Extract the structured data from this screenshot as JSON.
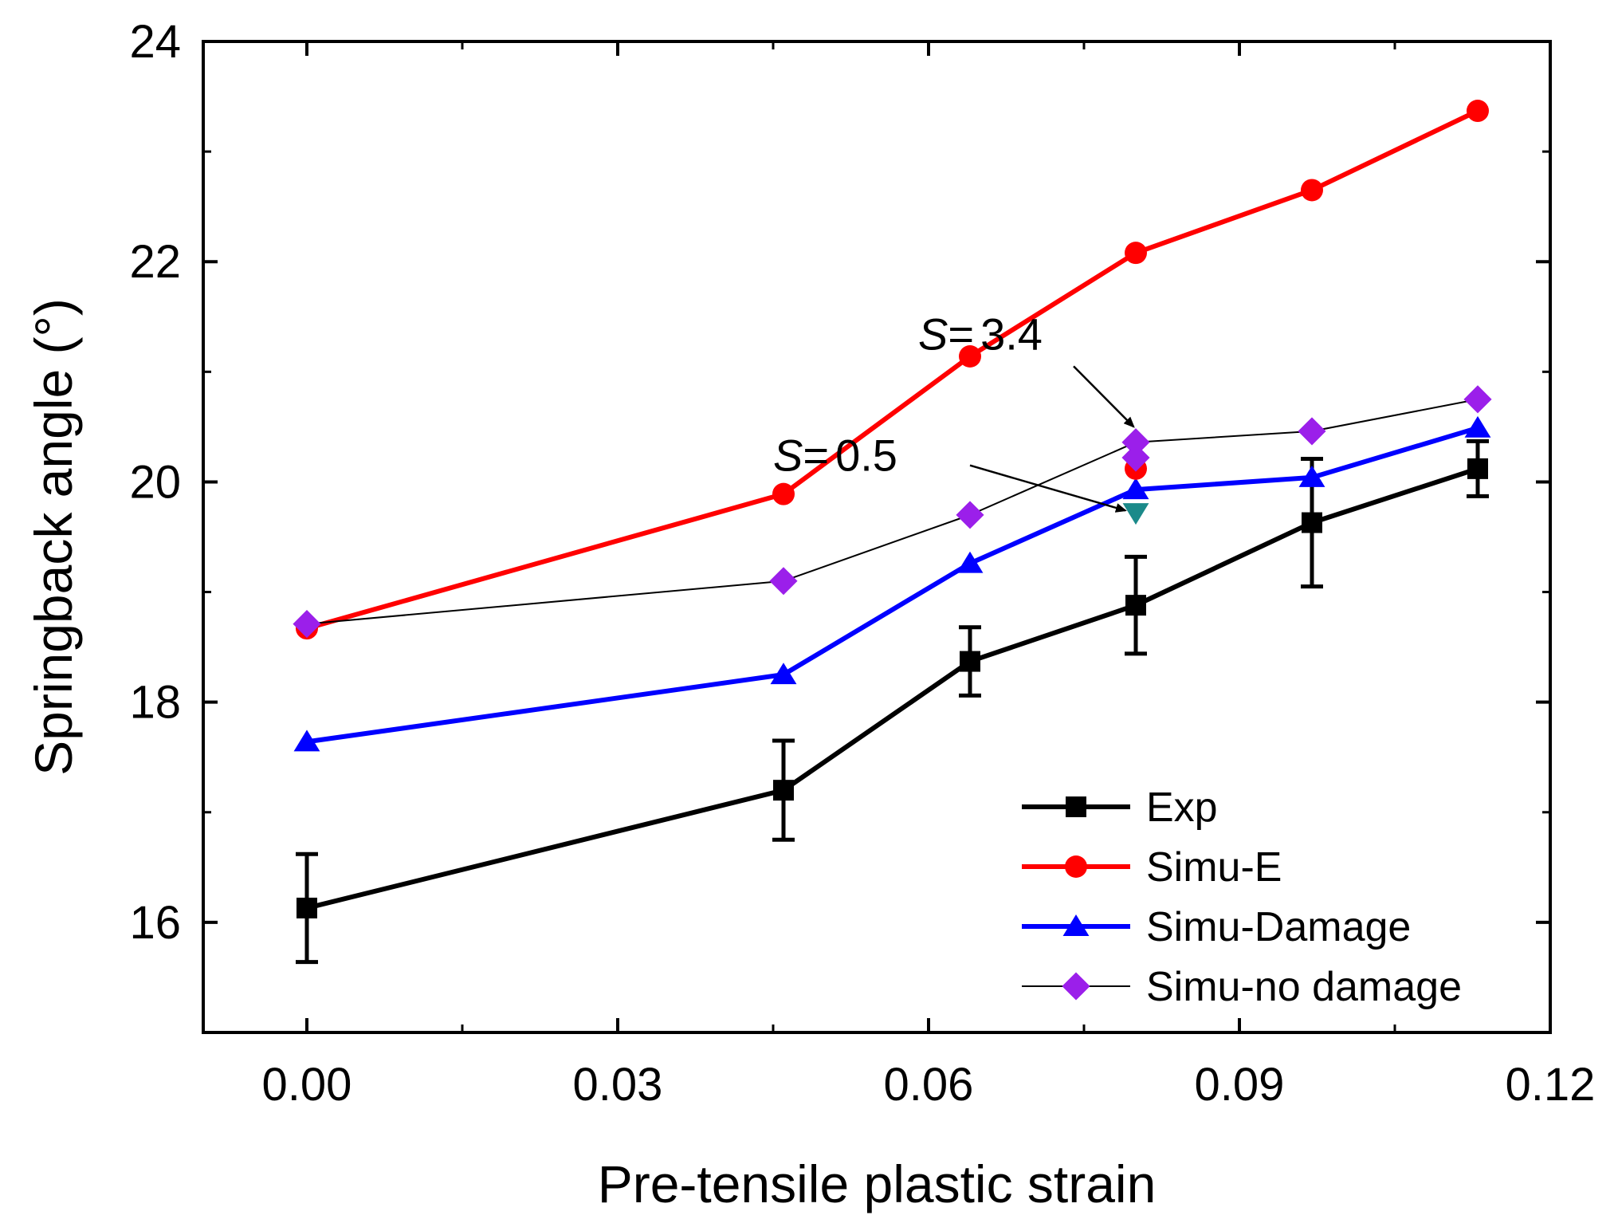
{
  "chart_data": {
    "type": "line",
    "title": "",
    "xlabel": "Pre-tensile plastic strain",
    "ylabel": "Springback angle  (°)",
    "xlim": [
      -0.01,
      0.12
    ],
    "ylim": [
      15,
      24
    ],
    "xticks": [
      0.0,
      0.03,
      0.06,
      0.09,
      0.12
    ],
    "xtick_labels": [
      "0.00",
      "0.03",
      "0.06",
      "0.09",
      "0.12"
    ],
    "yticks": [
      16,
      18,
      20,
      22,
      24
    ],
    "ytick_labels": [
      "16",
      "18",
      "20",
      "22",
      "24"
    ],
    "grid": false,
    "legend_position": "bottom-right",
    "series": [
      {
        "name": "Exp",
        "color": "#000000",
        "marker": "square",
        "x": [
          0.0,
          0.046,
          0.064,
          0.08,
          0.097,
          0.113
        ],
        "y": [
          16.13,
          17.2,
          18.37,
          18.88,
          19.63,
          20.12
        ],
        "yerr": [
          0.49,
          0.45,
          0.31,
          0.44,
          0.58,
          0.25
        ]
      },
      {
        "name": "Simu-E",
        "color": "#ff0000",
        "marker": "circle",
        "x": [
          0.0,
          0.046,
          0.064,
          0.08,
          0.097,
          0.113
        ],
        "y": [
          18.67,
          19.89,
          21.14,
          22.08,
          22.65,
          23.37
        ]
      },
      {
        "name": "Simu-Damage",
        "color": "#0000ff",
        "marker": "triangle-up",
        "x": [
          0.0,
          0.046,
          0.064,
          0.08,
          0.097,
          0.113
        ],
        "y": [
          17.64,
          18.25,
          19.26,
          19.93,
          20.04,
          20.49
        ]
      },
      {
        "name": "Simu-no damage",
        "color": "#000000",
        "marker": "diamond",
        "marker_color": "#9b1fea",
        "x": [
          0.0,
          0.046,
          0.064,
          0.08,
          0.097,
          0.113
        ],
        "y": [
          18.71,
          19.1,
          19.7,
          20.36,
          20.46,
          20.75
        ]
      }
    ],
    "extra_points": [
      {
        "x": 0.08,
        "y": 20.12,
        "marker": "circle",
        "color": "#ff0000"
      },
      {
        "x": 0.08,
        "y": 20.22,
        "marker": "diamond",
        "color": "#9b1fea"
      },
      {
        "x": 0.08,
        "y": 19.72,
        "marker": "triangle-down",
        "color": "#1b8a8a"
      }
    ],
    "annotations": [
      {
        "s_label": "S",
        "eq": "=",
        "value": "3.4",
        "text_x": 0.059,
        "text_y": 21.2,
        "arrow_from": [
          0.074,
          21.05
        ],
        "arrow_to": [
          0.0798,
          20.5
        ]
      },
      {
        "s_label": "S",
        "eq": "=",
        "value": "0.5",
        "text_x": 0.045,
        "text_y": 20.1,
        "arrow_from": [
          0.064,
          20.15
        ],
        "arrow_to": [
          0.079,
          19.74
        ]
      }
    ]
  }
}
